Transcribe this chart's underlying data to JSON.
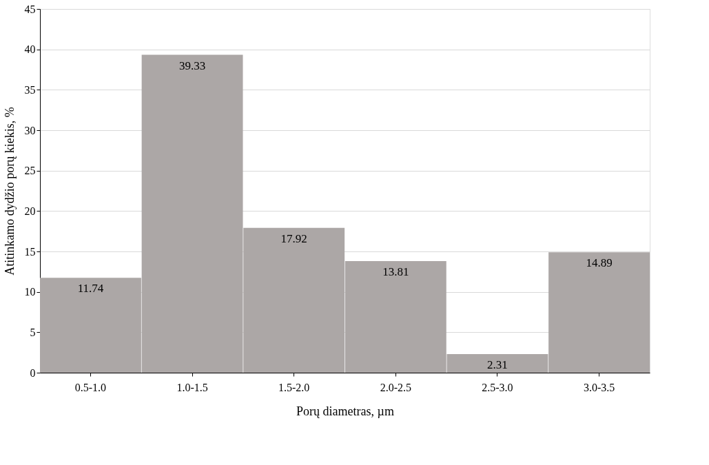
{
  "chart_data": {
    "type": "bar",
    "xlabel": "Porų diametras, µm",
    "ylabel": "Atitinkamo dydžio porų kiekis, %",
    "categories": [
      "0.5-1.0",
      "1.0-1.5",
      "1.5-2.0",
      "2.0-2.5",
      "2.5-3.0",
      "3.0-3.5"
    ],
    "values": [
      11.74,
      39.33,
      17.92,
      13.81,
      2.31,
      14.89
    ],
    "color": "#aca7a6",
    "ylim": [
      0,
      45
    ],
    "yticks": [
      0,
      5,
      10,
      15,
      20,
      25,
      30,
      35,
      40,
      45
    ],
    "grid": "y",
    "data_labels": true
  }
}
